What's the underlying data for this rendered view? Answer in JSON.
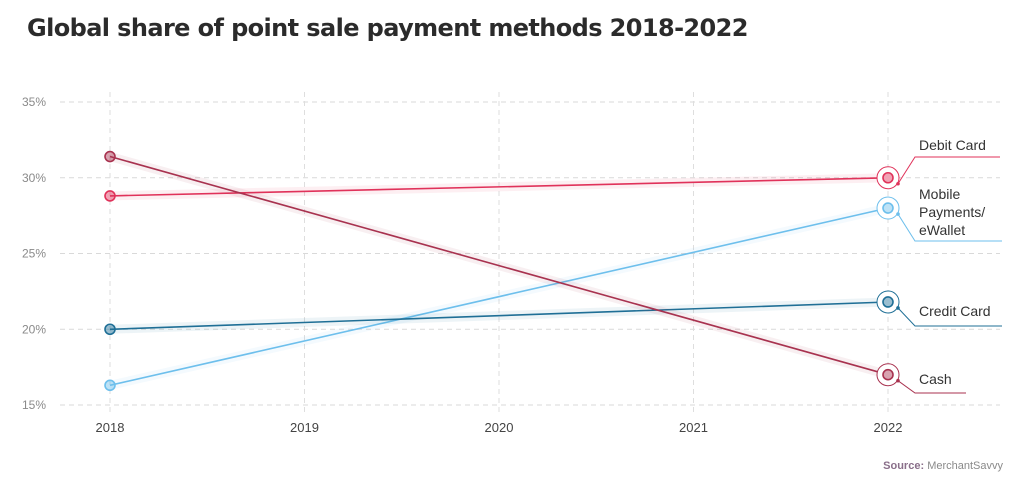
{
  "chart_data": {
    "type": "line",
    "title": "Global share of point sale payment methods 2018-2022",
    "x": [
      2018,
      2019,
      2020,
      2021,
      2022
    ],
    "x_tick_labels": [
      "2018",
      "2019",
      "2020",
      "2021",
      "2022"
    ],
    "y_ticks": [
      15,
      20,
      25,
      30,
      35
    ],
    "y_tick_labels": [
      "15%",
      "20%",
      "25%",
      "30%",
      "35%"
    ],
    "ylim": [
      15,
      35
    ],
    "grid": true,
    "series": [
      {
        "name": "Debit Card",
        "label": "Debit Card",
        "color": "#e0325a",
        "points": [
          [
            2018,
            28.8
          ],
          [
            2022,
            30.0
          ]
        ]
      },
      {
        "name": "Mobile Payments/ eWallet",
        "label": "Mobile\nPayments/\neWallet",
        "color": "#6dbfec",
        "points": [
          [
            2018,
            16.3
          ],
          [
            2022,
            28.0
          ]
        ]
      },
      {
        "name": "Credit Card",
        "label": "Credit Card",
        "color": "#1f6f96",
        "points": [
          [
            2018,
            20.0
          ],
          [
            2022,
            21.8
          ]
        ]
      },
      {
        "name": "Cash",
        "label": "Cash",
        "color": "#a8324f",
        "points": [
          [
            2018,
            31.4
          ],
          [
            2022,
            17.0
          ]
        ]
      }
    ]
  },
  "source": {
    "label": "Source:",
    "value": "MerchantSavvy"
  }
}
